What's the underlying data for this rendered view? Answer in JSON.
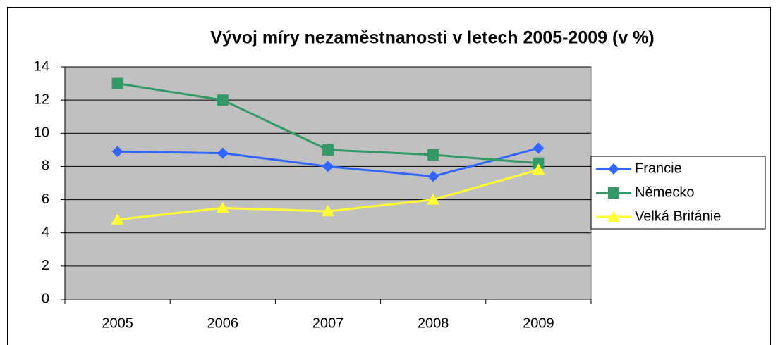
{
  "chart_data": {
    "type": "line",
    "title": "Vývoj míry nezaměstnanosti v letech 2005-2009 (v %)",
    "categories": [
      "2005",
      "2006",
      "2007",
      "2008",
      "2009"
    ],
    "series": [
      {
        "name": "Francie",
        "color": "#3366ff",
        "marker": "diamond",
        "values": [
          8.9,
          8.8,
          8.0,
          7.4,
          9.1
        ]
      },
      {
        "name": "Německo",
        "color": "#339966",
        "marker": "square",
        "values": [
          13.0,
          12.0,
          9.0,
          8.7,
          8.2
        ]
      },
      {
        "name": "Velká Británie",
        "color": "#ffff33",
        "marker": "triangle",
        "values": [
          4.8,
          5.5,
          5.3,
          6.0,
          7.8
        ]
      }
    ],
    "ylim": [
      0,
      14
    ],
    "yticks": [
      0,
      2,
      4,
      6,
      8,
      10,
      12,
      14
    ],
    "grid": true,
    "legend": "right"
  }
}
